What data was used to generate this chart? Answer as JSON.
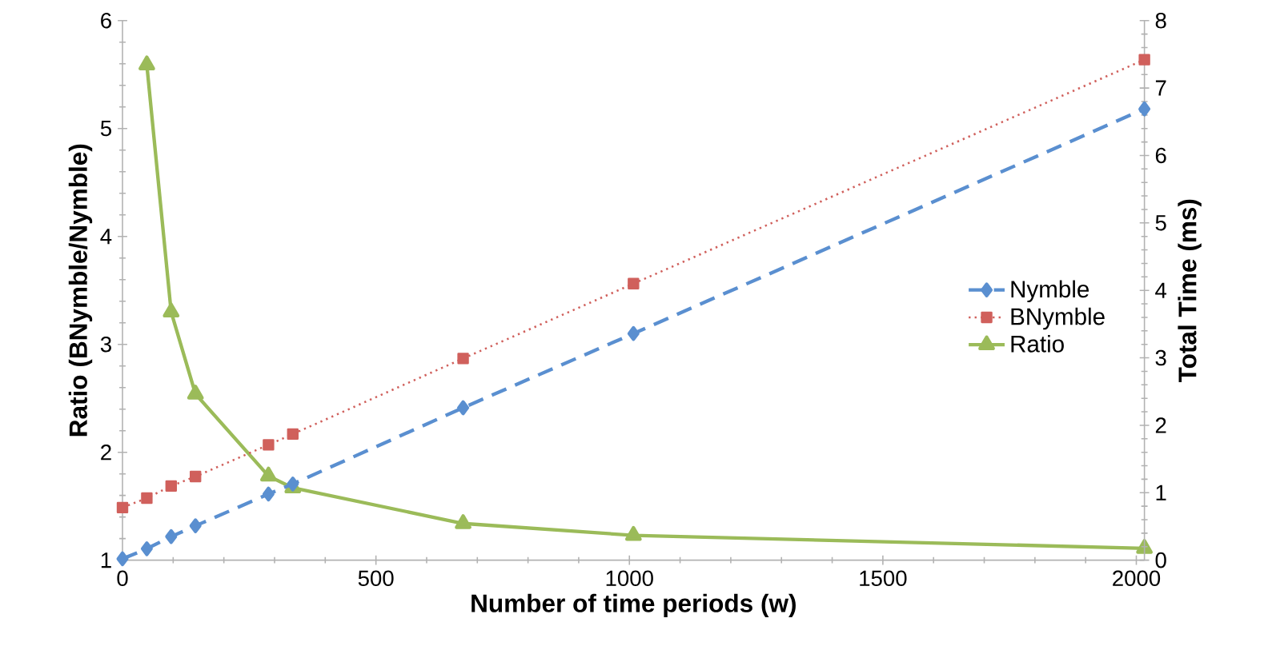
{
  "chart_data": {
    "type": "line",
    "xlabel": "Number of time periods (w)",
    "ylabel": "Ratio (BNymble/Nymble)",
    "y2label": "Total Time (ms)",
    "x": [
      0,
      48,
      96,
      144,
      288,
      336,
      672,
      1008,
      2016
    ],
    "series": [
      {
        "name": "Nymble",
        "color": "#5a8fd0",
        "axis": "y2",
        "marker": "diamond",
        "line_style": "dashed",
        "values": [
          0.02,
          0.17,
          0.35,
          0.51,
          0.98,
          1.13,
          2.26,
          3.36,
          6.69
        ]
      },
      {
        "name": "BNymble",
        "color": "#d0605c",
        "axis": "y2",
        "marker": "square",
        "line_style": "dotted",
        "values": [
          0.78,
          0.92,
          1.1,
          1.24,
          1.71,
          1.87,
          2.99,
          4.1,
          7.42
        ]
      },
      {
        "name": "Ratio",
        "color": "#9bbb59",
        "axis": "y",
        "marker": "triangle",
        "line_style": "solid",
        "values": [
          null,
          5.59,
          3.3,
          2.54,
          1.78,
          1.67,
          1.34,
          1.23,
          1.11
        ]
      }
    ],
    "xlim": [
      0,
      2016
    ],
    "xticks": [
      0,
      500,
      1000,
      1500,
      2000
    ],
    "ylim": [
      1,
      6
    ],
    "yticks": [
      1,
      2,
      3,
      4,
      5,
      6
    ],
    "y2lim": [
      0,
      8
    ],
    "y2ticks": [
      0,
      1,
      2,
      3,
      4,
      5,
      6,
      7,
      8
    ],
    "grid": false,
    "legend": "right"
  }
}
